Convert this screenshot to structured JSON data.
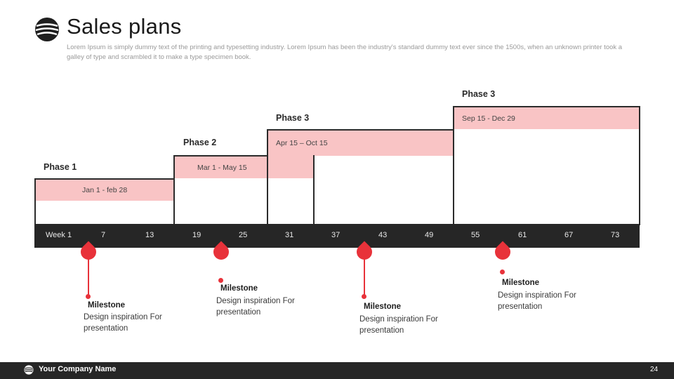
{
  "header": {
    "title": "Sales plans",
    "subtitle": "Lorem Ipsum is simply dummy text of the printing and typesetting industry. Lorem Ipsum has been the industry's standard dummy text ever since the 1500s, when an unknown printer took a galley of type and scrambled it to make a type specimen book."
  },
  "phases": [
    {
      "label": "Phase 1",
      "dates": "Jan 1 - feb 28"
    },
    {
      "label": "Phase 2",
      "dates": "Mar 1 - May 15"
    },
    {
      "label": "Phase 3",
      "dates": "Apr 15 – Oct 15"
    },
    {
      "label": "Phase 3",
      "dates": "Sep 15 - Dec 29"
    }
  ],
  "timeline": {
    "weeks": [
      "Week 1",
      "7",
      "13",
      "19",
      "25",
      "31",
      "37",
      "43",
      "49",
      "55",
      "61",
      "67",
      "73"
    ]
  },
  "milestones": [
    {
      "title": "Milestone",
      "text": "Design inspiration For presentation"
    },
    {
      "title": "Milestone",
      "text": "Design inspiration For presentation"
    },
    {
      "title": "Milestone",
      "text": "Design inspiration For presentation"
    },
    {
      "title": "Milestone",
      "text": "Design inspiration For presentation"
    }
  ],
  "footer": {
    "company": "Your Company Name",
    "page_number": "24"
  },
  "colors": {
    "accent": "#e8323a",
    "band": "#f9c4c5",
    "dark": "#262626"
  }
}
